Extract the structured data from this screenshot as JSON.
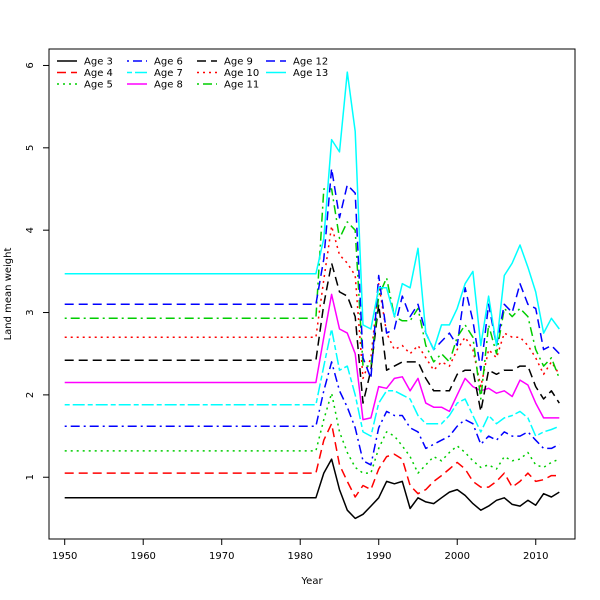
{
  "chart_data": {
    "type": "line",
    "title": "",
    "xlabel": "Year",
    "ylabel": "Land mean weight",
    "xlim": [
      1948,
      2015
    ],
    "ylim": [
      0.25,
      6.2
    ],
    "x_ticks": [
      1950,
      1960,
      1970,
      1980,
      1990,
      2000,
      2010
    ],
    "y_ticks": [
      1,
      2,
      3,
      4,
      5,
      6
    ],
    "x_tick_labels": [
      "1950",
      "1960",
      "1970",
      "1980",
      "1990",
      "2000",
      "2010"
    ],
    "y_tick_labels": [
      "1",
      "2",
      "3",
      "4",
      "5",
      "6"
    ],
    "grid": false,
    "legend_position": "top-left",
    "x": [
      1950,
      1951,
      1952,
      1953,
      1954,
      1955,
      1956,
      1957,
      1958,
      1959,
      1960,
      1961,
      1962,
      1963,
      1964,
      1965,
      1966,
      1967,
      1968,
      1969,
      1970,
      1971,
      1972,
      1973,
      1974,
      1975,
      1976,
      1977,
      1978,
      1979,
      1980,
      1981,
      1982,
      1983,
      1984,
      1985,
      1986,
      1987,
      1988,
      1989,
      1990,
      1991,
      1992,
      1993,
      1994,
      1995,
      1996,
      1997,
      1998,
      1999,
      2000,
      2001,
      2002,
      2003,
      2004,
      2005,
      2006,
      2007,
      2008,
      2009,
      2010,
      2011,
      2012,
      2013
    ],
    "series": [
      {
        "name": "Age 3",
        "color": "#000000",
        "dash": "solid",
        "base": 0.75,
        "tail": [
          0.75,
          1.05,
          1.22,
          0.85,
          0.6,
          0.5,
          0.55,
          0.65,
          0.75,
          0.95,
          0.92,
          0.95,
          0.62,
          0.75,
          0.7,
          0.68,
          0.75,
          0.82,
          0.85,
          0.78,
          0.68,
          0.6,
          0.65,
          0.72,
          0.75,
          0.67,
          0.65,
          0.72,
          0.66,
          0.8,
          0.76,
          0.82
        ]
      },
      {
        "name": "Age 4",
        "color": "#ff0000",
        "dash": "long",
        "base": 1.05,
        "tail": [
          1.05,
          1.45,
          1.65,
          1.15,
          0.95,
          0.76,
          0.9,
          0.85,
          1.1,
          1.25,
          1.28,
          1.22,
          0.9,
          0.8,
          0.85,
          0.95,
          1.02,
          1.1,
          1.18,
          1.1,
          0.95,
          0.88,
          0.88,
          0.95,
          1.05,
          0.88,
          0.95,
          1.05,
          0.95,
          0.97,
          1.02,
          1.02
        ]
      },
      {
        "name": "Age 5",
        "color": "#00cd00",
        "dash": "dot",
        "base": 1.32,
        "tail": [
          1.32,
          1.7,
          2.02,
          1.55,
          1.3,
          1.12,
          1.05,
          1.05,
          1.35,
          1.55,
          1.5,
          1.38,
          1.25,
          1.05,
          1.15,
          1.25,
          1.2,
          1.3,
          1.38,
          1.3,
          1.2,
          1.12,
          1.15,
          1.1,
          1.25,
          1.2,
          1.22,
          1.3,
          1.15,
          1.12,
          1.18,
          1.22
        ]
      },
      {
        "name": "Age 6",
        "color": "#0000ff",
        "dash": "dotdash",
        "base": 1.62,
        "tail": [
          1.62,
          2.05,
          2.4,
          2.05,
          1.85,
          1.6,
          1.2,
          1.15,
          1.6,
          1.8,
          1.75,
          1.75,
          1.6,
          1.55,
          1.35,
          1.4,
          1.45,
          1.5,
          1.62,
          1.7,
          1.65,
          1.4,
          1.5,
          1.45,
          1.55,
          1.5,
          1.5,
          1.55,
          1.45,
          1.35,
          1.35,
          1.4
        ]
      },
      {
        "name": "Age 7",
        "color": "#00ffff",
        "dash": "twodash",
        "base": 1.88,
        "tail": [
          1.88,
          2.35,
          2.8,
          2.3,
          2.35,
          2.0,
          1.55,
          1.5,
          1.9,
          2.05,
          2.05,
          2.0,
          1.95,
          1.75,
          1.65,
          1.65,
          1.65,
          1.75,
          1.9,
          1.95,
          1.75,
          1.55,
          1.75,
          1.65,
          1.72,
          1.75,
          1.8,
          1.72,
          1.5,
          1.55,
          1.58,
          1.62
        ]
      },
      {
        "name": "Age 8",
        "color": "#ff00ff",
        "dash": "solid",
        "base": 2.15,
        "tail": [
          2.15,
          2.7,
          3.22,
          2.8,
          2.75,
          2.5,
          1.7,
          1.72,
          2.1,
          2.08,
          2.2,
          2.22,
          2.05,
          2.2,
          1.9,
          1.85,
          1.85,
          1.8,
          2.0,
          2.2,
          2.1,
          2.05,
          2.08,
          2.02,
          2.05,
          1.98,
          2.18,
          2.12,
          1.9,
          1.72,
          1.72,
          1.72
        ]
      },
      {
        "name": "Age 9",
        "color": "#000000",
        "dash": "long",
        "base": 2.42,
        "tail": [
          2.42,
          3.1,
          3.6,
          3.25,
          3.2,
          2.95,
          1.9,
          2.3,
          3.1,
          2.3,
          2.35,
          2.4,
          2.4,
          2.4,
          2.2,
          2.05,
          2.05,
          2.05,
          2.25,
          2.3,
          2.3,
          1.8,
          2.3,
          2.25,
          2.3,
          2.3,
          2.35,
          2.35,
          2.1,
          1.95,
          2.05,
          1.9
        ]
      },
      {
        "name": "Age 10",
        "color": "#ff0000",
        "dash": "dot",
        "base": 2.7,
        "tail": [
          2.7,
          3.4,
          4.05,
          3.7,
          3.6,
          3.45,
          2.2,
          2.45,
          3.35,
          2.75,
          2.55,
          2.6,
          2.5,
          2.6,
          2.45,
          2.3,
          2.4,
          2.35,
          2.55,
          2.7,
          2.55,
          2.1,
          2.55,
          2.45,
          2.75,
          2.7,
          2.7,
          2.6,
          2.45,
          2.25,
          2.4,
          2.25
        ]
      },
      {
        "name": "Age 11",
        "color": "#00cd00",
        "dash": "dotdash",
        "base": 2.93,
        "tail": [
          2.93,
          4.5,
          4.5,
          3.9,
          4.1,
          4.0,
          2.35,
          2.35,
          3.2,
          3.42,
          2.95,
          2.9,
          2.9,
          3.05,
          2.6,
          2.4,
          2.5,
          2.4,
          2.7,
          2.85,
          2.7,
          1.95,
          2.85,
          2.5,
          3.05,
          2.95,
          3.05,
          2.95,
          2.55,
          2.35,
          2.45,
          2.2
        ]
      },
      {
        "name": "Age 12",
        "color": "#0000ff",
        "dash": "long",
        "base": 3.1,
        "tail": [
          3.1,
          3.65,
          4.75,
          4.15,
          4.55,
          4.45,
          2.45,
          2.2,
          3.45,
          2.75,
          2.8,
          3.2,
          2.95,
          3.1,
          2.75,
          2.55,
          2.65,
          2.75,
          2.6,
          3.3,
          2.9,
          2.3,
          3.1,
          2.6,
          3.1,
          3.0,
          3.35,
          3.1,
          3.05,
          2.55,
          2.6,
          2.5
        ]
      },
      {
        "name": "Age 13",
        "color": "#00ffff",
        "dash": "solid",
        "base": 3.47,
        "tail": [
          3.47,
          3.9,
          5.1,
          4.95,
          5.92,
          5.2,
          2.85,
          2.8,
          3.3,
          3.3,
          2.95,
          3.35,
          3.3,
          3.78,
          2.75,
          2.55,
          2.85,
          2.85,
          3.05,
          3.35,
          3.5,
          2.6,
          3.2,
          2.6,
          3.45,
          3.6,
          3.82,
          3.55,
          3.25,
          2.75,
          2.93,
          2.8
        ]
      }
    ]
  }
}
